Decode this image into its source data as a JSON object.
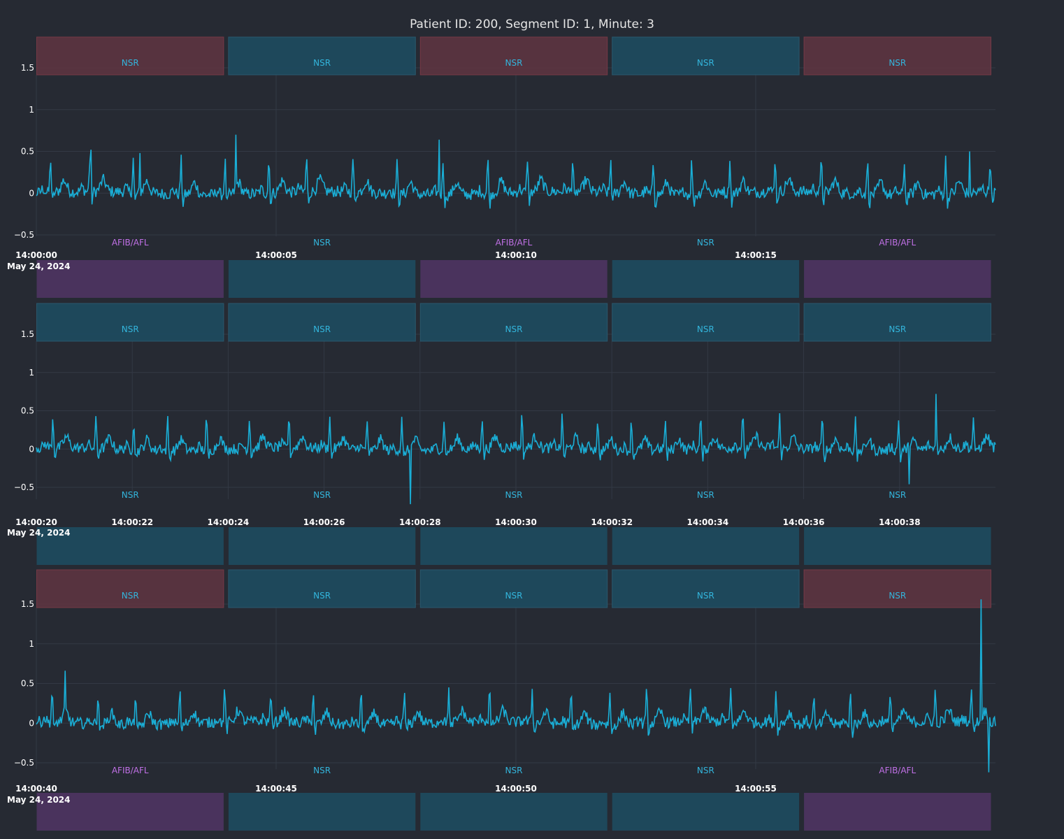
{
  "title": "Patient ID: 200, Segment ID: 1, Minute: 3",
  "colors": {
    "background": "#262a33",
    "signal": "#1aaed6",
    "grid": "#333945",
    "nsr_label": "#33b5dc",
    "afib_label": "#c070e6",
    "nsr_box": "#1e4a5e",
    "afib_box_top": "#5a3440",
    "afib_box_bottom": "#4c3460"
  },
  "chart_data": [
    {
      "type": "line",
      "series": [
        {
          "values_note": "",
          "start": "14:00:00",
          "end": "14:00:20"
        }
      ],
      "x_range": [
        "14:00:00",
        "14:00:20"
      ],
      "ylim": [
        -0.6,
        1.9
      ],
      "y_ticks": [
        "1.5",
        "1",
        "0.5",
        "0",
        "−0.5"
      ],
      "y_tick_values": [
        1.5,
        1,
        0.5,
        0,
        -0.5
      ],
      "x_ticks": [
        "14:00:00",
        "14:00:05",
        "14:00:10",
        "14:00:15"
      ],
      "x_tick_seconds": [
        0,
        5,
        10,
        15
      ],
      "date_label": "May 24, 2024",
      "top_labels": [
        {
          "text": "NSR",
          "start": 0,
          "end": 4,
          "box": "afib"
        },
        {
          "text": "NSR",
          "start": 4,
          "end": 8,
          "box": "nsr"
        },
        {
          "text": "NSR",
          "start": 8,
          "end": 12,
          "box": "afib"
        },
        {
          "text": "NSR",
          "start": 12,
          "end": 16,
          "box": "nsr"
        },
        {
          "text": "NSR",
          "start": 16,
          "end": 20,
          "box": "afib"
        }
      ],
      "bottom_labels": [
        {
          "text": "AFIB/AFL",
          "start": 0,
          "end": 4,
          "kind": "afib"
        },
        {
          "text": "NSR",
          "start": 4,
          "end": 8,
          "kind": "nsr"
        },
        {
          "text": "AFIB/AFL",
          "start": 8,
          "end": 12,
          "kind": "afib"
        },
        {
          "text": "NSR",
          "start": 12,
          "end": 16,
          "kind": "nsr"
        },
        {
          "text": "AFIB/AFL",
          "start": 16,
          "end": 20,
          "kind": "afib"
        }
      ],
      "peaks": [
        {
          "t": 1.15,
          "v": 0.52
        },
        {
          "t": 2.15,
          "v": 0.48
        },
        {
          "t": 4.15,
          "v": 0.7
        },
        {
          "t": 8.4,
          "v": 0.64
        },
        {
          "t": 19.45,
          "v": 0.5
        }
      ]
    },
    {
      "type": "line",
      "x_range": [
        "14:00:20",
        "14:00:40"
      ],
      "ylim": [
        -0.7,
        1.9
      ],
      "y_ticks": [
        "1.5",
        "1",
        "0.5",
        "0",
        "−0.5"
      ],
      "y_tick_values": [
        1.5,
        1,
        0.5,
        0,
        -0.5
      ],
      "x_ticks": [
        "14:00:20",
        "14:00:22",
        "14:00:24",
        "14:00:26",
        "14:00:28",
        "14:00:30",
        "14:00:32",
        "14:00:34",
        "14:00:36",
        "14:00:38"
      ],
      "x_tick_seconds": [
        0,
        2,
        4,
        6,
        8,
        10,
        12,
        14,
        16,
        18
      ],
      "date_label": "May 24, 2024",
      "top_labels": [
        {
          "text": "NSR",
          "start": 0,
          "end": 4,
          "box": "nsr"
        },
        {
          "text": "NSR",
          "start": 4,
          "end": 8,
          "box": "nsr"
        },
        {
          "text": "NSR",
          "start": 8,
          "end": 12,
          "box": "nsr"
        },
        {
          "text": "NSR",
          "start": 12,
          "end": 16,
          "box": "nsr"
        },
        {
          "text": "NSR",
          "start": 16,
          "end": 20,
          "box": "nsr"
        }
      ],
      "bottom_labels": [
        {
          "text": "NSR",
          "start": 0,
          "end": 4,
          "kind": "nsr"
        },
        {
          "text": "NSR",
          "start": 4,
          "end": 8,
          "kind": "nsr"
        },
        {
          "text": "NSR",
          "start": 8,
          "end": 12,
          "kind": "nsr"
        },
        {
          "text": "NSR",
          "start": 12,
          "end": 16,
          "kind": "nsr"
        },
        {
          "text": "NSR",
          "start": 16,
          "end": 20,
          "kind": "nsr"
        }
      ],
      "peaks": [
        {
          "t": 7.8,
          "v": -0.72
        },
        {
          "t": 18.75,
          "v": 0.72
        },
        {
          "t": 18.2,
          "v": -0.46
        }
      ]
    },
    {
      "type": "line",
      "x_range": [
        "14:00:40",
        "14:01:00"
      ],
      "ylim": [
        -0.65,
        1.95
      ],
      "y_ticks": [
        "1.5",
        "1",
        "0.5",
        "0",
        "−0.5"
      ],
      "y_tick_values": [
        1.5,
        1,
        0.5,
        0,
        -0.5
      ],
      "x_ticks": [
        "14:00:40",
        "14:00:45",
        "14:00:50",
        "14:00:55"
      ],
      "x_tick_seconds": [
        0,
        5,
        10,
        15
      ],
      "date_label": "May 24, 2024",
      "top_labels": [
        {
          "text": "NSR",
          "start": 0,
          "end": 4,
          "box": "afib"
        },
        {
          "text": "NSR",
          "start": 4,
          "end": 8,
          "box": "nsr"
        },
        {
          "text": "NSR",
          "start": 8,
          "end": 12,
          "box": "nsr"
        },
        {
          "text": "NSR",
          "start": 12,
          "end": 16,
          "box": "nsr"
        },
        {
          "text": "NSR",
          "start": 16,
          "end": 20,
          "box": "afib"
        }
      ],
      "bottom_labels": [
        {
          "text": "AFIB/AFL",
          "start": 0,
          "end": 4,
          "kind": "afib"
        },
        {
          "text": "NSR",
          "start": 4,
          "end": 8,
          "kind": "nsr"
        },
        {
          "text": "NSR",
          "start": 8,
          "end": 12,
          "kind": "nsr"
        },
        {
          "text": "NSR",
          "start": 12,
          "end": 16,
          "kind": "nsr"
        },
        {
          "text": "AFIB/AFL",
          "start": 16,
          "end": 20,
          "kind": "afib"
        }
      ],
      "peaks": [
        {
          "t": 19.7,
          "v": 1.56
        },
        {
          "t": 0.6,
          "v": 0.66
        },
        {
          "t": 19.85,
          "v": -0.62
        }
      ]
    }
  ]
}
